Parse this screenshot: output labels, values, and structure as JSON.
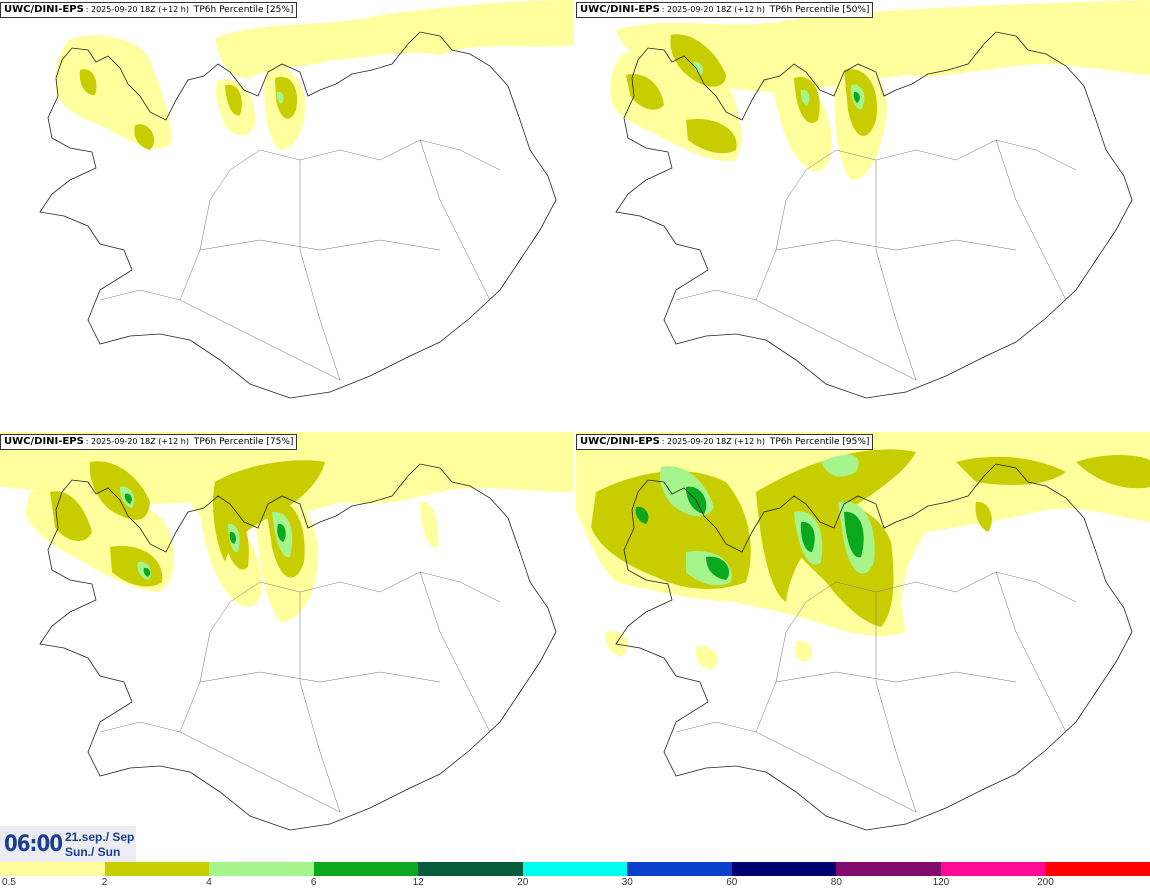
{
  "panels": [
    {
      "model": "UWC/DINI-EPS",
      "run": ": 2025-09-20 18Z (+12 h)",
      "field": "TP6h Percentile",
      "percentile": "[25%]"
    },
    {
      "model": "UWC/DINI-EPS",
      "run": ": 2025-09-20 18Z (+12 h)",
      "field": "TP6h Percentile",
      "percentile": "[50%]"
    },
    {
      "model": "UWC/DINI-EPS",
      "run": ": 2025-09-20 18Z (+12 h)",
      "field": "TP6h Percentile",
      "percentile": "[75%]"
    },
    {
      "model": "UWC/DINI-EPS",
      "run": ": 2025-09-20 18Z (+12 h)",
      "field": "TP6h Percentile",
      "percentile": "[95%]"
    }
  ],
  "valid_time": {
    "hour": "06:00",
    "date_line": "21.sep./ Sep",
    "day_line": "Sun./ Sun"
  },
  "colorbar": {
    "ticks": [
      "0.5",
      "2",
      "4",
      "6",
      "12",
      "20",
      "30",
      "60",
      "80",
      "120",
      "200"
    ],
    "colors": [
      "#ffff9e",
      "#c8cd00",
      "#a6f48c",
      "#0aa81e",
      "#085c3c",
      "#00ffee",
      "#0a41cc",
      "#00006e",
      "#820a6e",
      "#ff0a96",
      "#ff0000"
    ]
  }
}
